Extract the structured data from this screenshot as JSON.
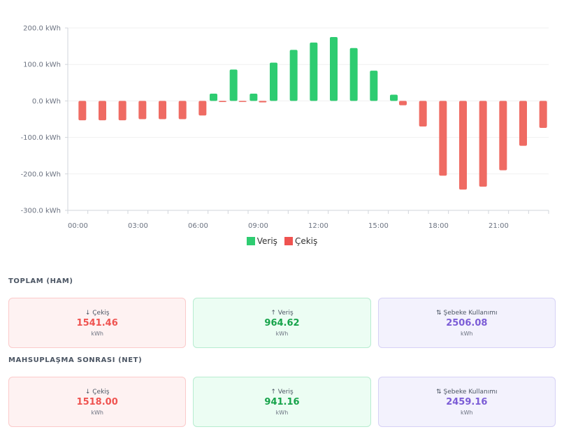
{
  "chart_data": {
    "type": "bar",
    "unit_suffix": " kWh",
    "ylim": [
      -300,
      200
    ],
    "y_ticks": [
      "200.0 kWh",
      "100.0 kWh",
      "0.0 kWh",
      "-100.0 kWh",
      "-200.0 kWh",
      "-300.0 kWh"
    ],
    "x_tick_labels": [
      "00:00",
      "03:00",
      "06:00",
      "09:00",
      "12:00",
      "15:00",
      "18:00",
      "21:00"
    ],
    "hours": [
      0,
      1,
      2,
      3,
      4,
      5,
      6,
      7,
      8,
      9,
      10,
      11,
      12,
      13,
      14,
      15,
      16,
      17,
      18,
      19,
      20,
      21,
      22,
      23
    ],
    "grid": true,
    "legend_position": "bottom",
    "series": [
      {
        "name": "Veriş",
        "color": "#2ecc71",
        "values": [
          0,
          0,
          0,
          0,
          0,
          0,
          0,
          20,
          86,
          20,
          105,
          140,
          160,
          175,
          145,
          83,
          17,
          0,
          0,
          0,
          0,
          0,
          0,
          0
        ]
      },
      {
        "name": "Çekiş",
        "color": "#ef6b63",
        "values": [
          -53,
          -53,
          -53,
          -50,
          -50,
          -50,
          -40,
          -3,
          -1,
          -4,
          0,
          0,
          0,
          0,
          0,
          0,
          -12,
          -70,
          -205,
          -243,
          -235,
          -190,
          -123,
          -74
        ]
      }
    ]
  },
  "raw_section": {
    "title": "TOPLAM (HAM)",
    "cards": [
      {
        "label": "↓ Çekiş",
        "value": "1541.46",
        "unit": "kWh"
      },
      {
        "label": "↑ Veriş",
        "value": "964.62",
        "unit": "kWh"
      },
      {
        "label": "⇅ Şebeke Kullanımı",
        "value": "2506.08",
        "unit": "kWh"
      }
    ]
  },
  "net_section": {
    "title": "MAHSUPLAŞMA SONRASI (NET)",
    "cards": [
      {
        "label": "↓ Çekiş",
        "value": "1518.00",
        "unit": "kWh"
      },
      {
        "label": "↑ Veriş",
        "value": "941.16",
        "unit": "kWh"
      },
      {
        "label": "⇅ Şebeke Kullanımı",
        "value": "2459.16",
        "unit": "kWh"
      }
    ]
  }
}
